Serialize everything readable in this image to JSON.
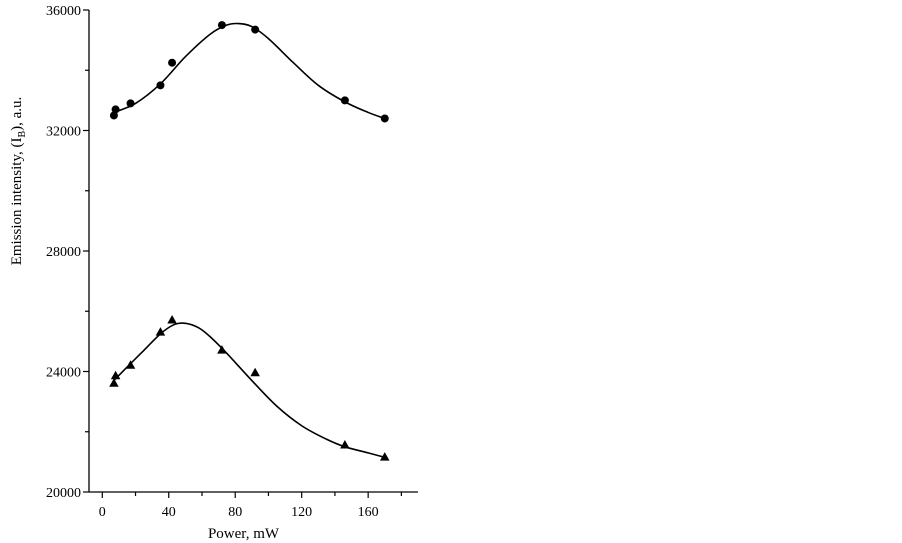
{
  "chart_data": {
    "type": "scatter",
    "xlabel": "Power, mW",
    "ylabel": {
      "prefix": "Emission intensity, (I",
      "subscript": "B",
      "suffix": "), a.u."
    },
    "xlim": [
      -8,
      190
    ],
    "ylim": [
      20000,
      36000
    ],
    "x_ticks": [
      0,
      40,
      80,
      120,
      160
    ],
    "x_tick_labels": [
      "0",
      "40",
      "80",
      "120",
      "160"
    ],
    "x_minor_step": 20,
    "y_ticks": [
      20000,
      24000,
      28000,
      32000,
      36000
    ],
    "y_tick_labels": [
      "20000",
      "24000",
      "28000",
      "32000",
      "36000"
    ],
    "y_minor_step": 2000,
    "grid": false,
    "legend": "none",
    "series": [
      {
        "marker": "circle",
        "x": [
          7,
          8,
          17,
          35,
          42,
          72,
          92,
          146,
          170
        ],
        "y": [
          32500,
          32700,
          32900,
          33500,
          34250,
          35500,
          35350,
          33000,
          32400
        ],
        "fit_curve": {
          "x": [
            7,
            20,
            35,
            50,
            65,
            75,
            82,
            90,
            100,
            115,
            130,
            146,
            160,
            170
          ],
          "y": [
            32600,
            32900,
            33550,
            34450,
            35200,
            35500,
            35550,
            35450,
            35050,
            34250,
            33500,
            32950,
            32600,
            32400
          ]
        }
      },
      {
        "marker": "triangle",
        "x": [
          7,
          8,
          17,
          35,
          42,
          72,
          92,
          146,
          170
        ],
        "y": [
          23600,
          23850,
          24200,
          25300,
          25700,
          24700,
          23950,
          21550,
          21150
        ],
        "fit_curve": {
          "x": [
            7,
            15,
            25,
            35,
            43,
            50,
            58,
            65,
            75,
            90,
            105,
            120,
            135,
            146,
            160,
            170
          ],
          "y": [
            23700,
            24150,
            24700,
            25250,
            25550,
            25600,
            25450,
            25150,
            24600,
            23700,
            22850,
            22200,
            21750,
            21500,
            21300,
            21150
          ]
        }
      }
    ]
  }
}
